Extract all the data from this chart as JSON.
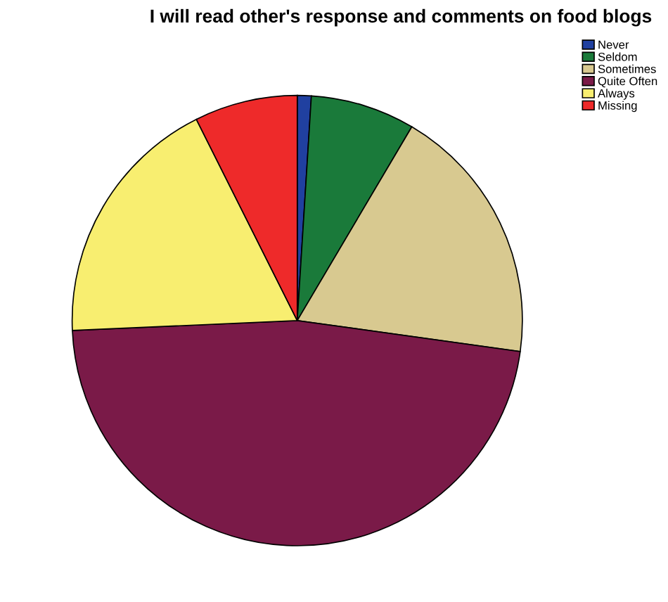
{
  "chart_data": {
    "type": "pie",
    "title": "I will read other's response and comments on food blogs",
    "categories": [
      "Never",
      "Seldom",
      "Sometimes",
      "Quite Often",
      "Always",
      "Missing"
    ],
    "values": [
      1,
      7.5,
      18.7,
      47.1,
      18.3,
      7.4
    ],
    "colors": [
      "#2040a0",
      "#1a7a3a",
      "#d8c990",
      "#7a1a48",
      "#f8ee70",
      "#ee2a2a"
    ],
    "legend": "top right"
  }
}
